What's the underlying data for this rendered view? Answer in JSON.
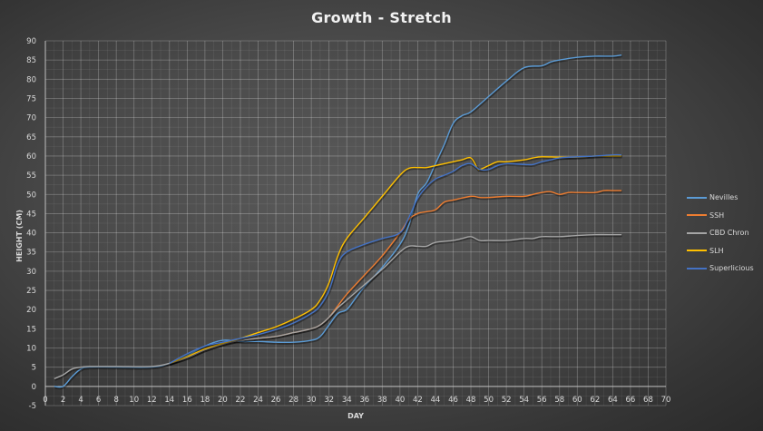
{
  "chart_data": {
    "type": "line",
    "title": "Growth - Stretch",
    "xlabel": "DAY",
    "ylabel": "HEIGHT (CM)",
    "xlim": [
      0,
      70
    ],
    "ylim": [
      -5,
      90
    ],
    "xticks": [
      0,
      2,
      4,
      6,
      8,
      10,
      12,
      14,
      16,
      18,
      20,
      22,
      24,
      26,
      28,
      30,
      32,
      34,
      36,
      38,
      40,
      42,
      44,
      46,
      48,
      50,
      52,
      54,
      56,
      58,
      60,
      62,
      64,
      66,
      68,
      70
    ],
    "yticks": [
      -5,
      0,
      5,
      10,
      15,
      20,
      25,
      30,
      35,
      40,
      45,
      50,
      55,
      60,
      65,
      70,
      75,
      80,
      85,
      90
    ],
    "grid": true,
    "legend_position": "right",
    "series": [
      {
        "name": "Nevilles",
        "color": "#5b9bd5",
        "points": [
          [
            1,
            0
          ],
          [
            2,
            0
          ],
          [
            3,
            2.5
          ],
          [
            4,
            4.5
          ],
          [
            5,
            5
          ],
          [
            8,
            5
          ],
          [
            12,
            5
          ],
          [
            14,
            6
          ],
          [
            16,
            8
          ],
          [
            18,
            10.5
          ],
          [
            20,
            12
          ],
          [
            22,
            11.7
          ],
          [
            24,
            11.7
          ],
          [
            26,
            11.5
          ],
          [
            28,
            11.5
          ],
          [
            30,
            12
          ],
          [
            31,
            13
          ],
          [
            32,
            16
          ],
          [
            33,
            19
          ],
          [
            34,
            20
          ],
          [
            35,
            23
          ],
          [
            36,
            26
          ],
          [
            38,
            31
          ],
          [
            40,
            37
          ],
          [
            41,
            42
          ],
          [
            42,
            50
          ],
          [
            43,
            53
          ],
          [
            44,
            58
          ],
          [
            45,
            63
          ],
          [
            46,
            68.5
          ],
          [
            47,
            70.5
          ],
          [
            48,
            71.5
          ],
          [
            50,
            75.5
          ],
          [
            52,
            79.5
          ],
          [
            54,
            83
          ],
          [
            56,
            83.5
          ],
          [
            57,
            84.5
          ],
          [
            58,
            85
          ],
          [
            60,
            85.7
          ],
          [
            62,
            86
          ],
          [
            64,
            86
          ],
          [
            65,
            86.3
          ]
        ]
      },
      {
        "name": "SSH",
        "color": "#ed7d31",
        "points": [
          [
            14,
            6
          ],
          [
            16,
            7.5
          ],
          [
            18,
            9.5
          ],
          [
            20,
            11
          ],
          [
            22,
            12
          ],
          [
            24,
            12.5
          ],
          [
            26,
            13
          ],
          [
            28,
            14
          ],
          [
            30,
            15
          ],
          [
            31,
            16
          ],
          [
            32,
            18
          ],
          [
            33,
            21
          ],
          [
            34,
            24
          ],
          [
            36,
            29
          ],
          [
            38,
            34
          ],
          [
            40,
            40
          ],
          [
            41,
            43.5
          ],
          [
            42,
            45
          ],
          [
            43,
            45.5
          ],
          [
            44,
            46
          ],
          [
            45,
            48
          ],
          [
            46,
            48.5
          ],
          [
            48,
            49.5
          ],
          [
            49,
            49.2
          ],
          [
            50,
            49.2
          ],
          [
            52,
            49.5
          ],
          [
            54,
            49.5
          ],
          [
            55,
            50
          ],
          [
            56,
            50.5
          ],
          [
            57,
            50.7
          ],
          [
            58,
            50
          ],
          [
            59,
            50.5
          ],
          [
            60,
            50.5
          ],
          [
            62,
            50.5
          ],
          [
            63,
            51
          ],
          [
            64,
            51
          ],
          [
            65,
            51
          ]
        ]
      },
      {
        "name": "CBD Chron",
        "color": "#a5a5a5",
        "points": [
          [
            1,
            2
          ],
          [
            2,
            3
          ],
          [
            3,
            4.5
          ],
          [
            4,
            5
          ],
          [
            5,
            5.2
          ],
          [
            8,
            5.2
          ],
          [
            12,
            5.2
          ],
          [
            14,
            6
          ],
          [
            16,
            7.5
          ],
          [
            18,
            9.5
          ],
          [
            20,
            11
          ],
          [
            22,
            12
          ],
          [
            24,
            12.5
          ],
          [
            26,
            13
          ],
          [
            28,
            14
          ],
          [
            30,
            15
          ],
          [
            31,
            16
          ],
          [
            32,
            18
          ],
          [
            33,
            20.5
          ],
          [
            34,
            22.5
          ],
          [
            36,
            26.5
          ],
          [
            38,
            30.5
          ],
          [
            40,
            35
          ],
          [
            41,
            36.5
          ],
          [
            42,
            36.5
          ],
          [
            43,
            36.5
          ],
          [
            44,
            37.5
          ],
          [
            46,
            38
          ],
          [
            47,
            38.5
          ],
          [
            48,
            39
          ],
          [
            49,
            38
          ],
          [
            50,
            38
          ],
          [
            52,
            38
          ],
          [
            54,
            38.5
          ],
          [
            55,
            38.5
          ],
          [
            56,
            39
          ],
          [
            58,
            39
          ],
          [
            60,
            39.3
          ],
          [
            62,
            39.5
          ],
          [
            64,
            39.5
          ],
          [
            65,
            39.5
          ]
        ]
      },
      {
        "name": "SLH",
        "color": "#ffc000",
        "points": [
          [
            14,
            6
          ],
          [
            16,
            7.8
          ],
          [
            18,
            9.8
          ],
          [
            20,
            11.2
          ],
          [
            22,
            12.5
          ],
          [
            24,
            14
          ],
          [
            26,
            15.5
          ],
          [
            28,
            17.5
          ],
          [
            30,
            20
          ],
          [
            31,
            22.5
          ],
          [
            32,
            27
          ],
          [
            33,
            34
          ],
          [
            34,
            38.5
          ],
          [
            36,
            44
          ],
          [
            38,
            49.5
          ],
          [
            40,
            55
          ],
          [
            41,
            56.8
          ],
          [
            42,
            57
          ],
          [
            43,
            57
          ],
          [
            44,
            57.5
          ],
          [
            45,
            58
          ],
          [
            46,
            58.5
          ],
          [
            47,
            59
          ],
          [
            48,
            59.5
          ],
          [
            48.7,
            57
          ],
          [
            49,
            56.5
          ],
          [
            50,
            57.5
          ],
          [
            51,
            58.5
          ],
          [
            52,
            58.5
          ],
          [
            54,
            59
          ],
          [
            55,
            59.5
          ],
          [
            56,
            59.8
          ],
          [
            58,
            59.7
          ],
          [
            60,
            59.7
          ],
          [
            62,
            60
          ],
          [
            64,
            60
          ],
          [
            65,
            60
          ]
        ]
      },
      {
        "name": "Superlicious",
        "color": "#4472c4",
        "points": [
          [
            14,
            6
          ],
          [
            16,
            8.5
          ],
          [
            18,
            10.5
          ],
          [
            20,
            11.5
          ],
          [
            22,
            12.5
          ],
          [
            24,
            13.5
          ],
          [
            26,
            14.8
          ],
          [
            28,
            16.5
          ],
          [
            30,
            19
          ],
          [
            31,
            21
          ],
          [
            32,
            25
          ],
          [
            33,
            32
          ],
          [
            34,
            35
          ],
          [
            36,
            37
          ],
          [
            38,
            38.5
          ],
          [
            40,
            40
          ],
          [
            41,
            44
          ],
          [
            42,
            49
          ],
          [
            43,
            52
          ],
          [
            44,
            54
          ],
          [
            45,
            55
          ],
          [
            46,
            56
          ],
          [
            47,
            57.5
          ],
          [
            48,
            58
          ],
          [
            49,
            56.5
          ],
          [
            50,
            56.5
          ],
          [
            51,
            57.5
          ],
          [
            52,
            58
          ],
          [
            54,
            57.8
          ],
          [
            55,
            57.8
          ],
          [
            56,
            58.5
          ],
          [
            57,
            59
          ],
          [
            58,
            59.5
          ],
          [
            60,
            59.8
          ],
          [
            62,
            60
          ],
          [
            64,
            60.3
          ],
          [
            65,
            60.3
          ]
        ]
      }
    ]
  },
  "legend": {
    "items": [
      {
        "label": "Nevilles",
        "color": "#5b9bd5"
      },
      {
        "label": "SSH",
        "color": "#ed7d31"
      },
      {
        "label": "CBD Chron",
        "color": "#a5a5a5"
      },
      {
        "label": "SLH",
        "color": "#ffc000"
      },
      {
        "label": "Superlicious",
        "color": "#4472c4"
      }
    ]
  }
}
